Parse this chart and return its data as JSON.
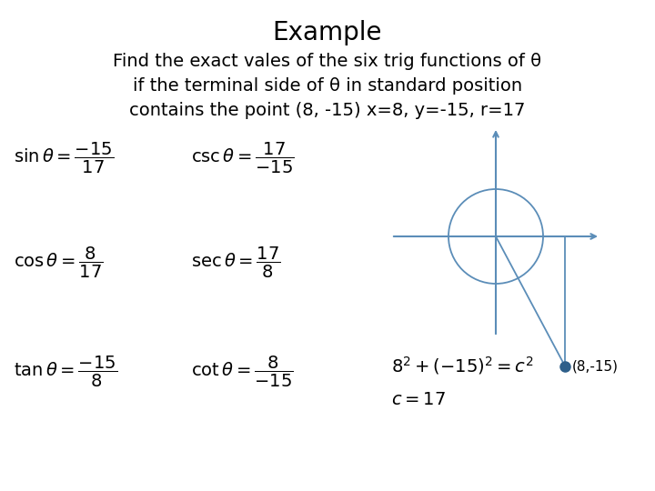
{
  "title": "Example",
  "subtitle_lines": [
    "Find the exact vales of the six trig functions of θ",
    "if the terminal side of θ in standard position",
    "contains the point (8, -15) x=8, y=-15, r=17"
  ],
  "sin_eq": "$\\sin\\theta = \\dfrac{-15}{17}$",
  "csc_eq": "$\\csc\\theta = \\dfrac{17}{-15}$",
  "cos_eq": "$\\cos\\theta = \\dfrac{8}{17}$",
  "sec_eq": "$\\sec\\theta = \\dfrac{17}{8}$",
  "tan_eq": "$\\tan\\theta = \\dfrac{-15}{8}$",
  "cot_eq": "$\\cot\\theta = \\dfrac{8}{-15}$",
  "pythagorean_eq": "$8^2+(-15)^2=c^2$",
  "c_eq": "$c=17$",
  "point_label": "(8,-15)",
  "background_color": "#ffffff",
  "text_color": "#000000",
  "line_color": "#5b8db8",
  "point_color": "#2e5f8a",
  "eq_fontsize": 14,
  "title_fontsize": 20,
  "subtitle_fontsize": 14
}
